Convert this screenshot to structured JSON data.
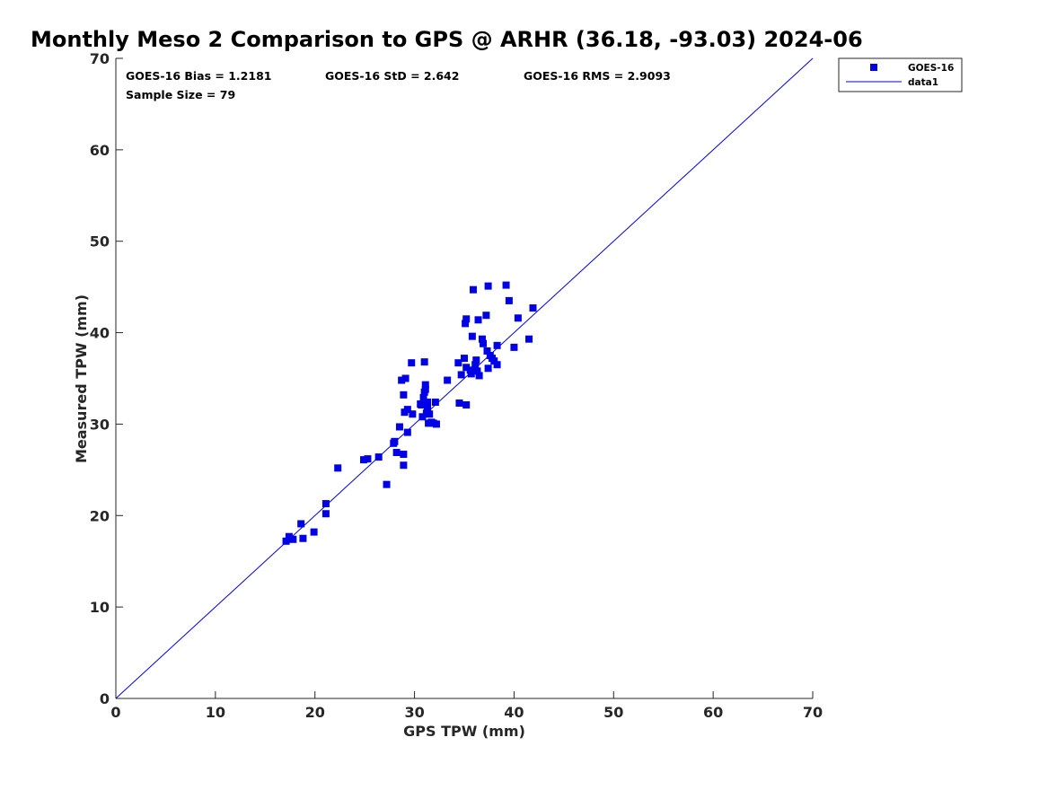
{
  "chart_data": {
    "type": "scatter",
    "title": "Monthly Meso 2 Comparison to GPS @ ARHR (36.18, -93.03) 2024-06",
    "xlabel": "GPS TPW (mm)",
    "ylabel": "Measured TPW (mm)",
    "xlim": [
      0,
      70
    ],
    "ylim": [
      0,
      70
    ],
    "xticks": [
      "0",
      "10",
      "20",
      "30",
      "40",
      "50",
      "60",
      "70"
    ],
    "yticks": [
      "0",
      "10",
      "20",
      "30",
      "40",
      "50",
      "60",
      "70"
    ],
    "grid": false,
    "legend_position": "outside-top-right",
    "annotations": {
      "bias": "GOES-16 Bias = 1.2181",
      "std": "GOES-16 StD = 2.642",
      "rms": "GOES-16 RMS = 2.9093",
      "sample": "Sample Size = 79"
    },
    "series": [
      {
        "name": "GOES-16",
        "kind": "scatter",
        "marker": "square",
        "color": "#0000e6",
        "points": [
          [
            17.1,
            17.2
          ],
          [
            17.4,
            17.7
          ],
          [
            17.8,
            17.4
          ],
          [
            18.6,
            19.1
          ],
          [
            18.8,
            17.5
          ],
          [
            19.9,
            18.2
          ],
          [
            21.1,
            21.3
          ],
          [
            21.1,
            20.2
          ],
          [
            22.3,
            25.2
          ],
          [
            24.9,
            26.1
          ],
          [
            25.3,
            26.2
          ],
          [
            26.4,
            26.4
          ],
          [
            27.2,
            23.4
          ],
          [
            27.9,
            27.9
          ],
          [
            28.0,
            28.1
          ],
          [
            28.2,
            26.9
          ],
          [
            28.5,
            29.7
          ],
          [
            28.7,
            34.8
          ],
          [
            28.9,
            26.7
          ],
          [
            28.9,
            25.5
          ],
          [
            28.9,
            33.2
          ],
          [
            29.0,
            31.3
          ],
          [
            29.1,
            35.0
          ],
          [
            29.3,
            31.6
          ],
          [
            29.3,
            29.1
          ],
          [
            29.7,
            36.7
          ],
          [
            29.8,
            31.1
          ],
          [
            30.7,
            32.1
          ],
          [
            30.8,
            30.8
          ],
          [
            30.9,
            32.9
          ],
          [
            31.0,
            36.8
          ],
          [
            31.0,
            33.5
          ],
          [
            31.1,
            34.3
          ],
          [
            31.1,
            33.8
          ],
          [
            31.2,
            31.2
          ],
          [
            31.3,
            32.4
          ],
          [
            31.3,
            31.7
          ],
          [
            31.4,
            30.1
          ],
          [
            31.5,
            31.1
          ],
          [
            31.7,
            30.2
          ],
          [
            32.1,
            32.4
          ],
          [
            32.2,
            30.0
          ],
          [
            33.3,
            34.8
          ],
          [
            34.4,
            36.7
          ],
          [
            34.5,
            32.3
          ],
          [
            34.7,
            35.4
          ],
          [
            35.0,
            37.2
          ],
          [
            35.1,
            41.0
          ],
          [
            35.2,
            41.5
          ],
          [
            35.2,
            36.2
          ],
          [
            35.2,
            32.1
          ],
          [
            35.6,
            35.9
          ],
          [
            35.7,
            35.5
          ],
          [
            35.8,
            39.6
          ],
          [
            35.9,
            44.7
          ],
          [
            36.1,
            36.5
          ],
          [
            36.2,
            37.0
          ],
          [
            36.3,
            35.8
          ],
          [
            36.4,
            41.4
          ],
          [
            36.5,
            35.3
          ],
          [
            36.8,
            39.3
          ],
          [
            36.9,
            38.8
          ],
          [
            37.2,
            41.9
          ],
          [
            37.3,
            38.0
          ],
          [
            37.4,
            45.1
          ],
          [
            37.4,
            36.1
          ],
          [
            37.6,
            37.5
          ],
          [
            38.0,
            36.9
          ],
          [
            38.3,
            38.6
          ],
          [
            38.3,
            36.5
          ],
          [
            39.2,
            45.2
          ],
          [
            39.5,
            43.5
          ],
          [
            40.0,
            38.4
          ],
          [
            40.4,
            41.6
          ],
          [
            41.5,
            39.3
          ],
          [
            41.9,
            42.7
          ],
          [
            37.8,
            37.2
          ],
          [
            30.6,
            32.2
          ],
          [
            31.9,
            30.1
          ]
        ]
      },
      {
        "name": "data1",
        "kind": "line",
        "color": "#0000e6",
        "points": [
          [
            0,
            0
          ],
          [
            70,
            70
          ]
        ]
      }
    ]
  }
}
